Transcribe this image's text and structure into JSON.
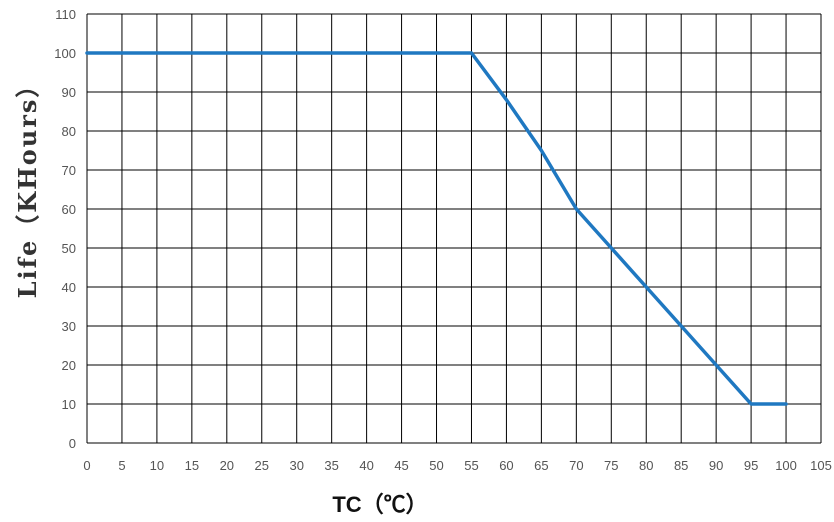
{
  "chart_data": {
    "type": "line",
    "title": "",
    "xlabel": "TC（℃）",
    "ylabel": "Life（KHours）",
    "xlim": [
      0,
      105
    ],
    "ylim": [
      0,
      110
    ],
    "x_ticks": [
      0,
      5,
      10,
      15,
      20,
      25,
      30,
      35,
      40,
      45,
      50,
      55,
      60,
      65,
      70,
      75,
      80,
      85,
      90,
      95,
      100,
      105
    ],
    "y_ticks": [
      0,
      10,
      20,
      30,
      40,
      50,
      60,
      70,
      80,
      90,
      100,
      110
    ],
    "grid": true,
    "legend": "none",
    "series": [
      {
        "color": "#1f78c1",
        "x": [
          0,
          55,
          60,
          65,
          70,
          75,
          80,
          85,
          90,
          95,
          100
        ],
        "y": [
          100,
          100,
          88,
          75,
          60,
          50,
          40,
          30,
          20,
          10,
          10
        ]
      }
    ]
  }
}
